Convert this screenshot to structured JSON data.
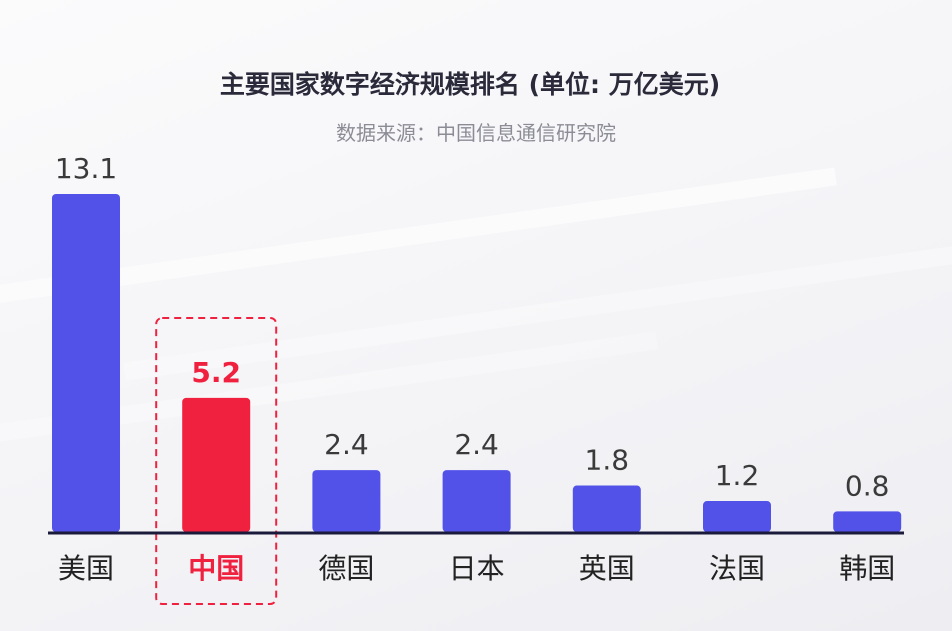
{
  "chart_data": {
    "type": "bar",
    "title": "主要国家数字经济规模排名 (单位: 万亿美元)",
    "subtitle": "数据来源：中国信息通信研究院",
    "categories": [
      "美国",
      "中国",
      "德国",
      "日本",
      "英国",
      "法国",
      "韩国"
    ],
    "values": [
      13.1,
      5.2,
      2.4,
      2.4,
      1.8,
      1.2,
      0.8
    ],
    "value_labels": [
      "13.1",
      "5.2",
      "2.4",
      "2.4",
      "1.8",
      "1.2",
      "0.8"
    ],
    "highlight_index": 1,
    "ylim": [
      0,
      13.1
    ],
    "grid": false,
    "legend": "none"
  },
  "colors": {
    "bar": "#5252e8",
    "highlight": "#f0203f",
    "axis": "#1a1a3a"
  }
}
